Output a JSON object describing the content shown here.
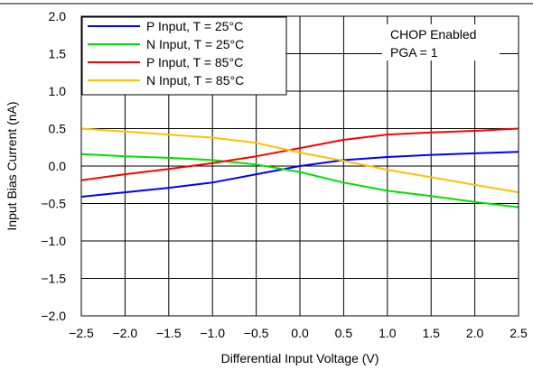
{
  "chart_data": {
    "type": "line",
    "title": "",
    "xlabel": "Differential Input Voltage (V)",
    "ylabel": "Input Bias Current (nA)",
    "xlim": [
      -2.5,
      2.5
    ],
    "ylim": [
      -2.0,
      2.0
    ],
    "xticks": [
      -2.5,
      -2.0,
      -1.5,
      -1.0,
      -0.5,
      0.0,
      0.5,
      1.0,
      1.5,
      2.0,
      2.5
    ],
    "yticks": [
      -2.0,
      -1.5,
      -1.0,
      -0.5,
      0.0,
      0.5,
      1.0,
      1.5,
      2.0
    ],
    "xtick_labels": [
      "−2.5",
      "−2.0",
      "−1.5",
      "−1.0",
      "−0.5",
      "0.0",
      "0.5",
      "1.0",
      "1.5",
      "2.0",
      "2.5"
    ],
    "ytick_labels": [
      "−2.0",
      "−1.5",
      "−1.0",
      "−0.5",
      "0.0",
      "0.5",
      "1.0",
      "1.5",
      "2.0"
    ],
    "grid": true,
    "legend_position": "top-left",
    "annotations": [
      "CHOP Enabled",
      "PGA = 1"
    ],
    "x": [
      -2.5,
      -2.0,
      -1.5,
      -1.0,
      -0.5,
      0.0,
      0.5,
      1.0,
      1.5,
      2.0,
      2.5
    ],
    "series": [
      {
        "name": "P Input, T = 25°C",
        "color": "#0000ff",
        "values": [
          -0.41,
          -0.35,
          -0.29,
          -0.22,
          -0.11,
          0.0,
          0.08,
          0.12,
          0.15,
          0.17,
          0.19
        ]
      },
      {
        "name": "N Input, T = 25°C",
        "color": "#00e000",
        "values": [
          0.16,
          0.13,
          0.11,
          0.08,
          0.02,
          -0.08,
          -0.22,
          -0.33,
          -0.4,
          -0.48,
          -0.55
        ]
      },
      {
        "name": "P Input, T = 85°C",
        "color": "#ff0000",
        "values": [
          -0.19,
          -0.11,
          -0.04,
          0.04,
          0.13,
          0.24,
          0.35,
          0.42,
          0.45,
          0.47,
          0.5
        ]
      },
      {
        "name": "N Input, T = 85°C",
        "color": "#ffc000",
        "values": [
          0.5,
          0.46,
          0.42,
          0.38,
          0.31,
          0.18,
          0.07,
          -0.05,
          -0.15,
          -0.25,
          -0.35
        ]
      }
    ]
  }
}
